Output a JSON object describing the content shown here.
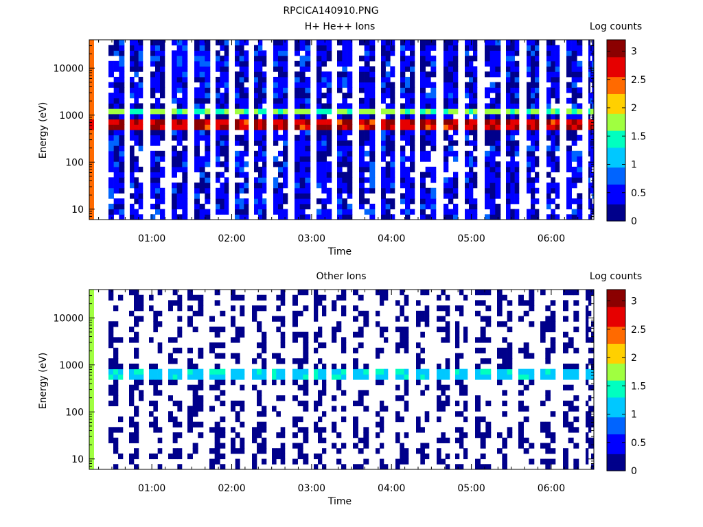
{
  "figure_title": "RPCICA140910.PNG",
  "colors": {
    "colormap": [
      "#00008b",
      "#0000ff",
      "#0064ff",
      "#00c8ff",
      "#00ffc0",
      "#a0ff40",
      "#ffd000",
      "#ff6a00",
      "#e60000",
      "#8b0000"
    ],
    "axis": "#000000",
    "background": "#ffffff"
  },
  "chart_data": [
    {
      "type": "heatmap",
      "title": "H+ He++ Ions",
      "xlabel": "Time",
      "ylabel": "Energy (eV)",
      "y_scale": "log",
      "x_ticks": [
        "01:00",
        "02:00",
        "03:00",
        "04:00",
        "05:00",
        "06:00"
      ],
      "y_ticks": [
        "10",
        "100",
        "1000",
        "10000"
      ],
      "colorbar": {
        "label": "Log counts",
        "range": [
          0,
          3.2
        ],
        "ticks": [
          "0",
          "0.5",
          "1",
          "1.5",
          "2",
          "2.5",
          "3"
        ]
      },
      "xlim": [
        "00:13",
        "06:32"
      ],
      "ylim": [
        6,
        40000
      ],
      "spectral_features": [
        {
          "energy_range_ev": [
            500,
            800
          ],
          "log_counts": 2.8
        },
        {
          "energy_range_ev": [
            1100,
            1500
          ],
          "log_counts": 1.6
        },
        {
          "energy_range_ev": [
            6,
            40000
          ],
          "log_counts": 0.4
        }
      ]
    },
    {
      "type": "heatmap",
      "title": "Other Ions",
      "xlabel": "Time",
      "ylabel": "Energy (eV)",
      "y_scale": "log",
      "x_ticks": [
        "01:00",
        "02:00",
        "03:00",
        "04:00",
        "05:00",
        "06:00"
      ],
      "y_ticks": [
        "10",
        "100",
        "1000",
        "10000"
      ],
      "colorbar": {
        "label": "Log counts",
        "range": [
          0,
          3.2
        ],
        "ticks": [
          "0",
          "0.5",
          "1",
          "1.5",
          "2",
          "2.5",
          "3"
        ]
      },
      "xlim": [
        "00:13",
        "06:32"
      ],
      "ylim": [
        6,
        40000
      ],
      "spectral_features": [
        {
          "energy_range_ev": [
            500,
            750
          ],
          "log_counts": 1.2
        },
        {
          "energy_range_ev": [
            6,
            40000
          ],
          "log_counts": 0.1
        }
      ]
    }
  ]
}
